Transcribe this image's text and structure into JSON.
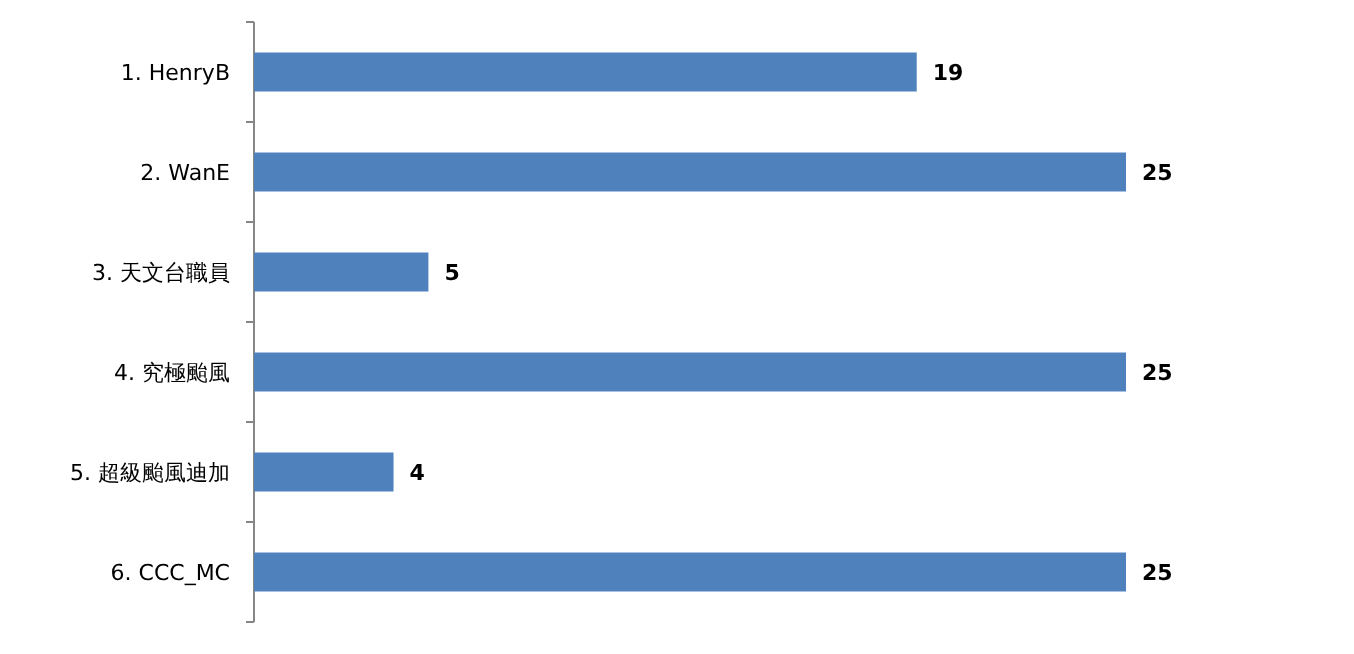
{
  "chart_data": {
    "type": "bar",
    "orientation": "horizontal",
    "categories": [
      "1. HenryB",
      "2. WanE",
      "3. 天文台職員",
      "4. 究極颱風",
      "5. 超級颱風迪加",
      "6. CCC_MC"
    ],
    "values": [
      19,
      25,
      5,
      25,
      4,
      25
    ],
    "color": "#4f81bd",
    "data_labels": true
  }
}
